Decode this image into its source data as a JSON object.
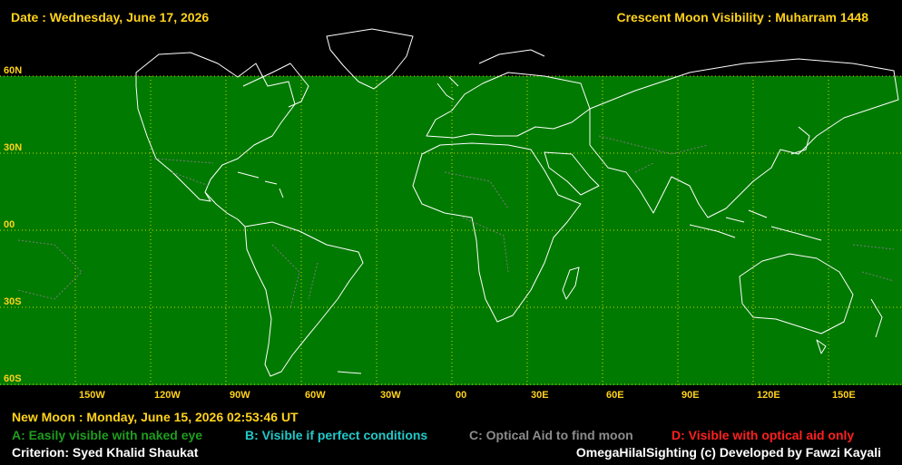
{
  "header": {
    "date": "Date : Wednesday, June 17, 2026",
    "title": "Crescent Moon Visibility : Muharram  1448"
  },
  "map": {
    "land_color": "#007a00",
    "grid_color": "#d6d600",
    "lat_labels": [
      "60N",
      "30N",
      "00",
      "30S",
      "60S"
    ],
    "lon_labels": [
      "150W",
      "120W",
      "90W",
      "60W",
      "30W",
      "00",
      "30E",
      "60E",
      "90E",
      "120E",
      "150E"
    ],
    "visibility_zone": "none"
  },
  "footer": {
    "new_moon": "New Moon : Monday, June 15, 2026  02:53:46  UT",
    "legend": [
      {
        "label": "A: Easily visible with naked eye",
        "color": "#1e9e1e"
      },
      {
        "label": "B: Visible if perfect conditions",
        "color": "#22c8c8"
      },
      {
        "label": "C: Optical Aid to find moon",
        "color": "#8c8c8c"
      },
      {
        "label": "D: Visible with optical aid only",
        "color": "#ff2020"
      }
    ],
    "criterion": "Criterion: Syed Khalid Shaukat",
    "credit": "OmegaHilalSighting  (c)  Developed by Fawzi Kayali"
  }
}
